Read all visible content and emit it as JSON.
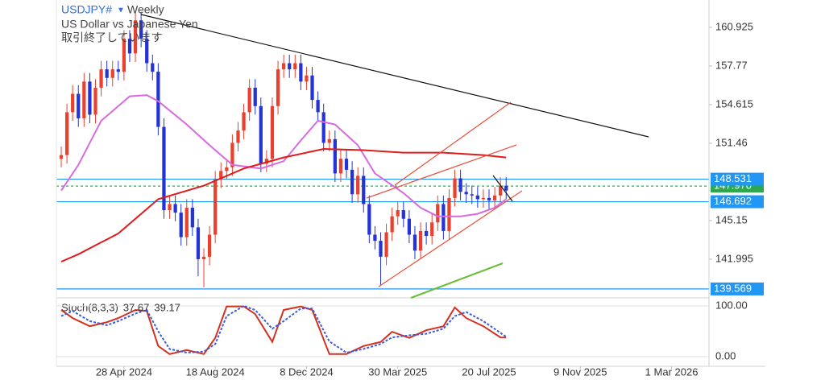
{
  "chart_data": {
    "type": "candlestick",
    "title": "USDJPY#",
    "timeframe": "Weekly",
    "subtitle": "US Dollar vs Japanese Yen",
    "status": "取引終了しています",
    "up_color": "#e8412f",
    "down_color": "#2333d6",
    "open": [
      150.2,
      150.5,
      154.0,
      155.5,
      153.5,
      156.5,
      153.8,
      156.0,
      157.5,
      156.8,
      157.5,
      157.3,
      160.0,
      158.8,
      161.5,
      160.0,
      158.0,
      157.3,
      152.8,
      146.0,
      146.5,
      145.8,
      143.8,
      146.2,
      144.6,
      142.0,
      142.2,
      144.0,
      148.5,
      149.2,
      149.5,
      151.5,
      152.5,
      154.0,
      156.0,
      154.5,
      149.8,
      150.2,
      154.5,
      157.5,
      158.0,
      157.5,
      158.0,
      156.5,
      157.0,
      155.0,
      154.0,
      151.5,
      151.8,
      149.0,
      150.2,
      149.3,
      147.3,
      148.8,
      146.5,
      144.0,
      143.5,
      142.2,
      144.2,
      145.5,
      146.0,
      145.3,
      144.0,
      142.7,
      144.3,
      143.9,
      145.0,
      146.5,
      144.3,
      147.0,
      148.6,
      147.5,
      147.3,
      147.2,
      146.9,
      147.0,
      146.8,
      147.2,
      148.0
    ],
    "high": [
      151.2,
      154.7,
      156.2,
      156.2,
      157.2,
      157.2,
      156.7,
      158.2,
      158.2,
      158.2,
      158.2,
      160.7,
      160.7,
      162.2,
      162.2,
      160.7,
      158.7,
      158.0,
      153.5,
      147.2,
      147.2,
      146.5,
      146.9,
      146.9,
      145.3,
      142.9,
      144.7,
      149.2,
      149.9,
      150.2,
      152.2,
      153.2,
      154.7,
      156.7,
      156.7,
      155.2,
      150.9,
      155.2,
      158.2,
      158.7,
      158.7,
      158.7,
      158.7,
      157.7,
      157.7,
      155.7,
      154.7,
      152.5,
      152.5,
      150.9,
      150.9,
      150.0,
      149.5,
      149.5,
      147.2,
      144.7,
      144.2,
      144.9,
      146.2,
      146.7,
      146.7,
      146.0,
      144.7,
      145.0,
      145.0,
      145.7,
      147.2,
      147.2,
      147.7,
      149.3,
      149.3,
      148.2,
      148.0,
      147.9,
      147.7,
      147.7,
      147.9,
      148.7,
      148.7
    ],
    "low": [
      149.5,
      149.8,
      153.3,
      152.8,
      152.8,
      153.1,
      153.1,
      155.3,
      156.1,
      156.1,
      156.6,
      156.6,
      158.1,
      158.1,
      159.3,
      157.3,
      156.6,
      152.1,
      145.3,
      145.3,
      145.1,
      143.1,
      143.1,
      143.9,
      140.6,
      139.7,
      141.5,
      143.3,
      147.8,
      148.5,
      148.8,
      150.8,
      151.8,
      153.3,
      153.8,
      149.1,
      149.1,
      149.5,
      153.8,
      156.8,
      156.8,
      156.8,
      155.8,
      155.8,
      154.3,
      153.3,
      150.8,
      150.8,
      148.3,
      148.3,
      148.6,
      146.6,
      146.6,
      145.8,
      143.3,
      142.8,
      139.9,
      141.5,
      143.5,
      144.8,
      144.6,
      143.3,
      142.0,
      142.0,
      143.2,
      143.2,
      144.3,
      143.6,
      143.6,
      146.3,
      146.8,
      146.6,
      146.5,
      146.2,
      146.2,
      146.1,
      146.1,
      146.5,
      146.9
    ],
    "close": [
      150.5,
      154.0,
      155.5,
      153.5,
      156.5,
      153.8,
      156.0,
      157.5,
      156.8,
      157.5,
      157.3,
      160.0,
      158.8,
      161.5,
      160.0,
      158.0,
      157.3,
      152.8,
      146.0,
      146.5,
      145.8,
      143.8,
      146.2,
      144.6,
      142.0,
      142.2,
      144.0,
      148.5,
      149.2,
      149.5,
      151.5,
      152.5,
      154.0,
      156.0,
      154.5,
      149.8,
      150.2,
      154.5,
      157.5,
      158.0,
      157.5,
      158.0,
      156.5,
      157.0,
      155.0,
      154.0,
      151.5,
      151.8,
      149.0,
      150.2,
      149.3,
      147.3,
      148.8,
      146.5,
      144.0,
      143.5,
      142.2,
      144.2,
      145.5,
      146.0,
      145.3,
      144.0,
      142.7,
      144.3,
      143.9,
      145.0,
      146.5,
      144.3,
      147.0,
      148.6,
      147.5,
      147.3,
      147.2,
      146.9,
      147.0,
      146.8,
      147.2,
      148.0,
      147.6
    ],
    "series": [
      {
        "color": "#d86ae0",
        "x": [
          0,
          3,
          7,
          12,
          15,
          17,
          22,
          26,
          30,
          35,
          39,
          42,
          45,
          48,
          52,
          55,
          60,
          63,
          66,
          70,
          73,
          76,
          78
        ],
        "values": [
          147.6,
          149.7,
          153.3,
          155.3,
          155.4,
          154.9,
          153.0,
          151.3,
          149.7,
          149.4,
          150.0,
          151.7,
          153.3,
          153.0,
          151.3,
          149.0,
          147.4,
          146.2,
          145.5,
          145.5,
          145.7,
          146.2,
          146.9
        ]
      },
      {
        "color": "#e01b1b",
        "x": [
          0,
          3,
          10,
          17,
          25,
          32,
          39,
          46,
          53,
          60,
          67,
          74,
          78
        ],
        "values": [
          141.8,
          142.4,
          144.1,
          146.9,
          148.0,
          149.4,
          150.3,
          151.0,
          150.9,
          150.7,
          150.7,
          150.5,
          150.3
        ]
      }
    ],
    "hlines": [
      {
        "value": 148.531,
        "color": "#2196f3"
      },
      {
        "value": 147.97,
        "label": "147.970",
        "color": "#2ea84f",
        "dashed": true
      },
      {
        "value": 146.692,
        "color": "#2196f3"
      },
      {
        "value": 139.569,
        "color": "#2196f3"
      }
    ],
    "xlim": [
      -0.85,
      113.56
    ],
    "xticks": [
      {
        "value": 11,
        "label": "28 Apr 2024"
      },
      {
        "value": 27,
        "label": "18 Aug 2024"
      },
      {
        "value": 43,
        "label": "8 Dec 2024"
      },
      {
        "value": 59,
        "label": "30 Mar 2025"
      },
      {
        "value": 75,
        "label": "20 Jul 2025"
      },
      {
        "value": 91,
        "label": "9 Nov 2025"
      },
      {
        "value": 107,
        "label": "1 Mar 2026"
      }
    ],
    "ylim": [
      138.84,
      163.16
    ],
    "yticks": [
      160.925,
      157.77,
      154.615,
      151.46,
      145.15,
      141.995
    ],
    "indicator": {
      "title": "Stoch(8,3,3)",
      "ylim": [
        -19.05,
        112.7
      ],
      "yticks": [
        {
          "value": 100,
          "label": "100.00"
        },
        {
          "value": 0,
          "label": "0.00"
        }
      ],
      "grid": true,
      "series": [
        {
          "color": "#d4301c",
          "x": [
            0,
            2,
            5,
            8,
            10,
            13,
            15,
            17,
            19,
            22,
            25,
            27,
            29,
            32,
            34,
            37,
            39,
            42,
            44,
            47,
            50,
            53,
            56,
            58,
            61,
            64,
            67,
            69,
            71,
            74,
            77,
            78
          ],
          "values": [
            92,
            76,
            60,
            68,
            76,
            92,
            90,
            21,
            5,
            13,
            5,
            37,
            99,
            99,
            84,
            29,
            92,
            99,
            92,
            5,
            5,
            21,
            29,
            49,
            37,
            52,
            60,
            97,
            76,
            60,
            38,
            37.67
          ]
        },
        {
          "color": "#3b5bdb",
          "dashed": true,
          "x": [
            0,
            2,
            5,
            8,
            10,
            13,
            15,
            17,
            19,
            22,
            25,
            27,
            29,
            32,
            34,
            37,
            39,
            42,
            44,
            47,
            50,
            53,
            56,
            58,
            61,
            64,
            67,
            69,
            71,
            74,
            78
          ],
          "values": [
            80,
            90,
            70,
            62,
            70,
            85,
            92,
            50,
            15,
            8,
            10,
            25,
            80,
            100,
            92,
            55,
            70,
            95,
            95,
            30,
            8,
            15,
            25,
            38,
            42,
            45,
            55,
            80,
            88,
            70,
            39.17
          ]
        }
      ]
    }
  }
}
